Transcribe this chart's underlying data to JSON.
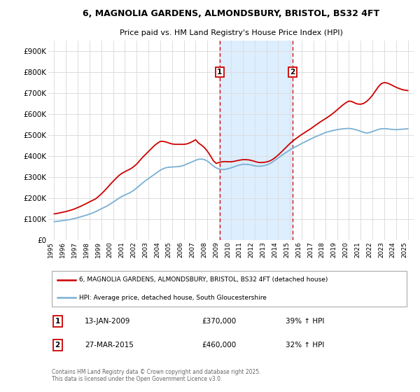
{
  "title_line1": "6, MAGNOLIA GARDENS, ALMONDSBURY, BRISTOL, BS32 4FT",
  "title_line2": "Price paid vs. HM Land Registry's House Price Index (HPI)",
  "ylim": [
    0,
    950000
  ],
  "yticks": [
    0,
    100000,
    200000,
    300000,
    400000,
    500000,
    600000,
    700000,
    800000,
    900000
  ],
  "ytick_labels": [
    "£0",
    "£100K",
    "£200K",
    "£300K",
    "£400K",
    "£500K",
    "£600K",
    "£700K",
    "£800K",
    "£900K"
  ],
  "line1_color": "#cc0000",
  "line2_color": "#7ab0d4",
  "shaded_region_color": "#ddeeff",
  "vline_color": "#cc0000",
  "vline1_x": 2009.04,
  "vline2_x": 2015.24,
  "legend_line1": "6, MAGNOLIA GARDENS, ALMONDSBURY, BRISTOL, BS32 4FT (detached house)",
  "legend_line2": "HPI: Average price, detached house, South Gloucestershire",
  "table_rows": [
    {
      "num": "1",
      "date": "13-JAN-2009",
      "price": "£370,000",
      "change": "39% ↑ HPI"
    },
    {
      "num": "2",
      "date": "27-MAR-2015",
      "price": "£460,000",
      "change": "32% ↑ HPI"
    }
  ],
  "footnote": "Contains HM Land Registry data © Crown copyright and database right 2025.\nThis data is licensed under the Open Government Licence v3.0.",
  "background_color": "#ffffff",
  "grid_color": "#dddddd",
  "hpi_x": [
    1995,
    1995.25,
    1995.5,
    1995.75,
    1996,
    1996.25,
    1996.5,
    1996.75,
    1997,
    1997.25,
    1997.5,
    1997.75,
    1998,
    1998.25,
    1998.5,
    1998.75,
    1999,
    1999.25,
    1999.5,
    1999.75,
    2000,
    2000.25,
    2000.5,
    2000.75,
    2001,
    2001.25,
    2001.5,
    2001.75,
    2002,
    2002.25,
    2002.5,
    2002.75,
    2003,
    2003.25,
    2003.5,
    2003.75,
    2004,
    2004.25,
    2004.5,
    2004.75,
    2005,
    2005.25,
    2005.5,
    2005.75,
    2006,
    2006.25,
    2006.5,
    2006.75,
    2007,
    2007.25,
    2007.5,
    2007.75,
    2008,
    2008.25,
    2008.5,
    2008.75,
    2009,
    2009.25,
    2009.5,
    2009.75,
    2010,
    2010.25,
    2010.5,
    2010.75,
    2011,
    2011.25,
    2011.5,
    2011.75,
    2012,
    2012.25,
    2012.5,
    2012.75,
    2013,
    2013.25,
    2013.5,
    2013.75,
    2014,
    2014.25,
    2014.5,
    2014.75,
    2015,
    2015.25,
    2015.5,
    2015.75,
    2016,
    2016.25,
    2016.5,
    2016.75,
    2017,
    2017.25,
    2017.5,
    2017.75,
    2018,
    2018.25,
    2018.5,
    2018.75,
    2019,
    2019.25,
    2019.5,
    2019.75,
    2020,
    2020.25,
    2020.5,
    2020.75,
    2021,
    2021.25,
    2021.5,
    2021.75,
    2022,
    2022.25,
    2022.5,
    2022.75,
    2023,
    2023.25,
    2023.5,
    2023.75,
    2024,
    2024.25,
    2024.5,
    2024.75,
    2025
  ],
  "hpi_y": [
    88000,
    89000,
    91000,
    93000,
    95000,
    97000,
    100000,
    103000,
    107000,
    111000,
    115000,
    119000,
    124000,
    129000,
    135000,
    142000,
    149000,
    156000,
    163000,
    172000,
    181000,
    190000,
    200000,
    208000,
    215000,
    221000,
    228000,
    237000,
    248000,
    260000,
    272000,
    283000,
    293000,
    303000,
    313000,
    323000,
    333000,
    340000,
    345000,
    347000,
    348000,
    349000,
    350000,
    352000,
    356000,
    362000,
    368000,
    374000,
    380000,
    385000,
    386000,
    383000,
    376000,
    365000,
    353000,
    344000,
    338000,
    336000,
    337000,
    340000,
    344000,
    349000,
    354000,
    358000,
    361000,
    361000,
    360000,
    357000,
    354000,
    352000,
    352000,
    354000,
    357000,
    363000,
    371000,
    381000,
    391000,
    401000,
    411000,
    420000,
    430000,
    438000,
    445000,
    452000,
    460000,
    467000,
    474000,
    481000,
    488000,
    494000,
    500000,
    506000,
    512000,
    516000,
    520000,
    523000,
    526000,
    528000,
    530000,
    531000,
    532000,
    530000,
    527000,
    523000,
    518000,
    513000,
    510000,
    512000,
    517000,
    522000,
    527000,
    530000,
    531000,
    530000,
    528000,
    527000,
    526000,
    527000,
    528000,
    529000,
    530000
  ],
  "price_x": [
    1995,
    1995.25,
    1995.5,
    1995.75,
    1996,
    1996.25,
    1996.5,
    1996.75,
    1997,
    1997.25,
    1997.5,
    1997.75,
    1998,
    1998.25,
    1998.5,
    1998.75,
    1999,
    1999.25,
    1999.5,
    1999.75,
    2000,
    2000.25,
    2000.5,
    2000.75,
    2001,
    2001.25,
    2001.5,
    2001.75,
    2002,
    2002.25,
    2002.5,
    2002.75,
    2003,
    2003.25,
    2003.5,
    2003.75,
    2004,
    2004.25,
    2004.5,
    2004.75,
    2005,
    2005.25,
    2005.5,
    2005.75,
    2006,
    2006.25,
    2006.5,
    2006.75,
    2007,
    2007.25,
    2007.5,
    2007.75,
    2008,
    2008.25,
    2008.5,
    2008.75,
    2009,
    2009.25,
    2009.5,
    2009.75,
    2010,
    2010.25,
    2010.5,
    2010.75,
    2011,
    2011.25,
    2011.5,
    2011.75,
    2012,
    2012.25,
    2012.5,
    2012.75,
    2013,
    2013.25,
    2013.5,
    2013.75,
    2014,
    2014.25,
    2014.5,
    2014.75,
    2015,
    2015.25,
    2015.5,
    2015.75,
    2016,
    2016.25,
    2016.5,
    2016.75,
    2017,
    2017.25,
    2017.5,
    2017.75,
    2018,
    2018.25,
    2018.5,
    2018.75,
    2019,
    2019.25,
    2019.5,
    2019.75,
    2020,
    2020.25,
    2020.5,
    2020.75,
    2021,
    2021.25,
    2021.5,
    2021.75,
    2022,
    2022.25,
    2022.5,
    2022.75,
    2023,
    2023.25,
    2023.5,
    2023.75,
    2024,
    2024.25,
    2024.5,
    2024.75,
    2025
  ],
  "price_y": [
    125000,
    127000,
    130000,
    133000,
    136000,
    140000,
    144000,
    149000,
    155000,
    161000,
    168000,
    175000,
    182000,
    189000,
    196000,
    207000,
    220000,
    234000,
    249000,
    265000,
    280000,
    294000,
    308000,
    318000,
    326000,
    333000,
    340000,
    350000,
    362000,
    378000,
    394000,
    408000,
    422000,
    436000,
    450000,
    461000,
    470000,
    470000,
    467000,
    462000,
    458000,
    456000,
    456000,
    456000,
    456000,
    458000,
    463000,
    470000,
    478000,
    462000,
    452000,
    440000,
    423000,
    402000,
    378000,
    365000,
    370000,
    373000,
    374000,
    373000,
    373000,
    375000,
    378000,
    381000,
    383000,
    383000,
    382000,
    379000,
    375000,
    371000,
    369000,
    370000,
    372000,
    376000,
    383000,
    393000,
    405000,
    418000,
    432000,
    446000,
    460000,
    472000,
    483000,
    493000,
    503000,
    512000,
    521000,
    530000,
    540000,
    550000,
    560000,
    569000,
    578000,
    587000,
    597000,
    608000,
    620000,
    632000,
    644000,
    654000,
    662000,
    660000,
    653000,
    648000,
    647000,
    651000,
    660000,
    673000,
    690000,
    710000,
    730000,
    745000,
    750000,
    748000,
    742000,
    735000,
    728000,
    722000,
    717000,
    714000,
    712000
  ],
  "xlim": [
    1994.5,
    2025.5
  ],
  "xticks": [
    1995,
    1996,
    1997,
    1998,
    1999,
    2000,
    2001,
    2002,
    2003,
    2004,
    2005,
    2006,
    2007,
    2008,
    2009,
    2010,
    2011,
    2012,
    2013,
    2014,
    2015,
    2016,
    2017,
    2018,
    2019,
    2020,
    2021,
    2022,
    2023,
    2024,
    2025
  ],
  "marker1_y": 800000,
  "marker2_y": 800000
}
